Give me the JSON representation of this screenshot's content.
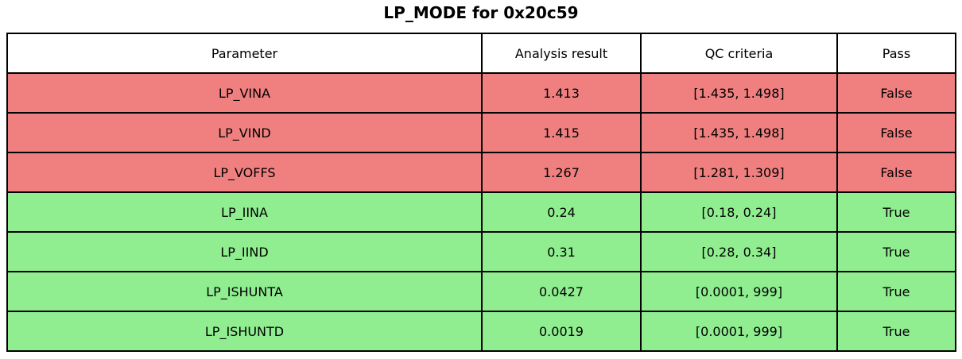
{
  "title": "LP_MODE for 0x20c59",
  "colors": {
    "fail_row": "#F08080",
    "pass_row": "#90EE90",
    "header_bg": "#FFFFFF",
    "border": "#000000",
    "text": "#000000"
  },
  "table": {
    "columns": [
      "Parameter",
      "Analysis result",
      "QC criteria",
      "Pass"
    ],
    "rows": [
      {
        "parameter": "LP_VINA",
        "result": "1.413",
        "criteria": "[1.435, 1.498]",
        "pass": "False"
      },
      {
        "parameter": "LP_VIND",
        "result": "1.415",
        "criteria": "[1.435, 1.498]",
        "pass": "False"
      },
      {
        "parameter": "LP_VOFFS",
        "result": "1.267",
        "criteria": "[1.281, 1.309]",
        "pass": "False"
      },
      {
        "parameter": "LP_IINA",
        "result": "0.24",
        "criteria": "[0.18, 0.24]",
        "pass": "True"
      },
      {
        "parameter": "LP_IIND",
        "result": "0.31",
        "criteria": "[0.28, 0.34]",
        "pass": "True"
      },
      {
        "parameter": "LP_ISHUNTA",
        "result": "0.0427",
        "criteria": "[0.0001, 999]",
        "pass": "True"
      },
      {
        "parameter": "LP_ISHUNTD",
        "result": "0.0019",
        "criteria": "[0.0001, 999]",
        "pass": "True"
      }
    ]
  },
  "chart_data": {
    "type": "table",
    "title": "LP_MODE for 0x20c59",
    "columns": [
      "Parameter",
      "Analysis result",
      "QC criteria",
      "Pass"
    ],
    "rows": [
      [
        "LP_VINA",
        "1.413",
        "[1.435, 1.498]",
        "False"
      ],
      [
        "LP_VIND",
        "1.415",
        "[1.435, 1.498]",
        "False"
      ],
      [
        "LP_VOFFS",
        "1.267",
        "[1.281, 1.309]",
        "False"
      ],
      [
        "LP_IINA",
        "0.24",
        "[0.18, 0.24]",
        "True"
      ],
      [
        "LP_IIND",
        "0.31",
        "[0.28, 0.34]",
        "True"
      ],
      [
        "LP_ISHUNTA",
        "0.0427",
        "[0.0001, 999]",
        "True"
      ],
      [
        "LP_ISHUNTD",
        "0.0019",
        "[0.0001, 999]",
        "True"
      ]
    ],
    "layout_hints": {
      "row_color_rule": "pass=True -> lightgreen #90EE90, pass=False -> lightcoral #F08080",
      "header_background": "white",
      "grid": "black cell borders"
    }
  }
}
